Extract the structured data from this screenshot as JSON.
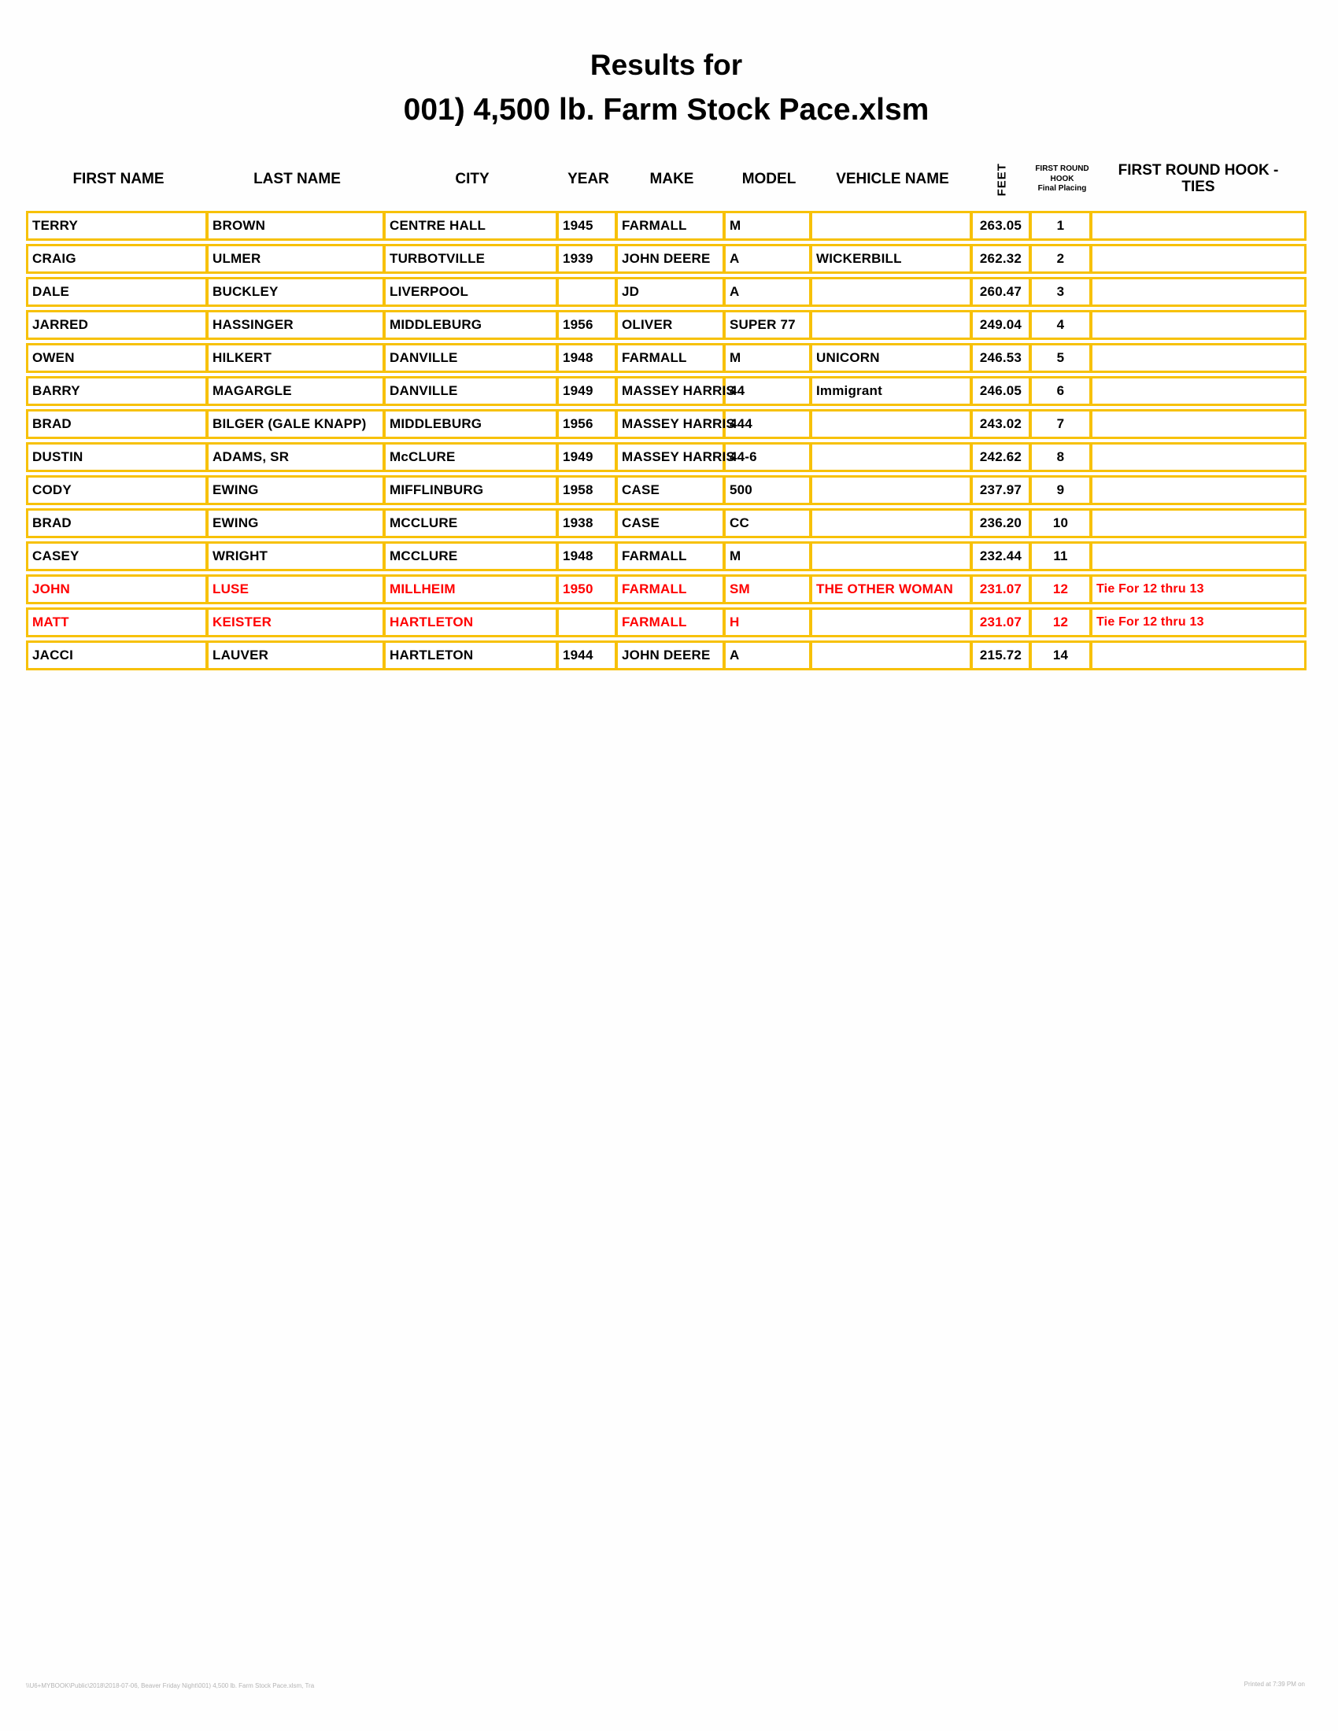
{
  "title": {
    "line1": "Results for",
    "line2": "001) 4,500 lb. Farm Stock Pace.xlsm"
  },
  "colors": {
    "border_gold": "#F7C108",
    "highlight_red": "#FF0000",
    "text": "#000000"
  },
  "table": {
    "columns": [
      {
        "key": "first_name",
        "label": "FIRST NAME"
      },
      {
        "key": "last_name",
        "label": "LAST NAME"
      },
      {
        "key": "city",
        "label": "CITY"
      },
      {
        "key": "year",
        "label": "YEAR"
      },
      {
        "key": "make",
        "label": "MAKE"
      },
      {
        "key": "model",
        "label": "MODEL"
      },
      {
        "key": "vehicle_name",
        "label": "VEHICLE NAME"
      },
      {
        "key": "feet",
        "label": "FEET"
      },
      {
        "key": "place",
        "label": "FIRST ROUND HOOK",
        "sublabel": "Final Placing"
      },
      {
        "key": "ties",
        "label": "FIRST ROUND HOOK - TIES"
      }
    ],
    "row_keys": [
      "first_name",
      "last_name",
      "city",
      "year",
      "make",
      "model",
      "vehicle_name",
      "feet",
      "place",
      "ties"
    ],
    "center_keys": [
      "feet",
      "place"
    ],
    "rows": [
      {
        "first_name": "TERRY",
        "last_name": "BROWN",
        "city": "CENTRE HALL",
        "year": "1945",
        "make": "FARMALL",
        "model": "M",
        "vehicle_name": "",
        "feet": "263.05",
        "place": "1",
        "ties": "",
        "highlight": false
      },
      {
        "first_name": "CRAIG",
        "last_name": "ULMER",
        "city": "TURBOTVILLE",
        "year": "1939",
        "make": "JOHN DEERE",
        "model": "A",
        "vehicle_name": "WICKERBILL",
        "feet": "262.32",
        "place": "2",
        "ties": "",
        "highlight": false
      },
      {
        "first_name": "DALE",
        "last_name": "BUCKLEY",
        "city": "LIVERPOOL",
        "year": "",
        "make": "JD",
        "model": "A",
        "vehicle_name": "",
        "feet": "260.47",
        "place": "3",
        "ties": "",
        "highlight": false
      },
      {
        "first_name": "JARRED",
        "last_name": "HASSINGER",
        "city": "MIDDLEBURG",
        "year": "1956",
        "make": "OLIVER",
        "model": "SUPER 77",
        "vehicle_name": "",
        "feet": "249.04",
        "place": "4",
        "ties": "",
        "highlight": false
      },
      {
        "first_name": "OWEN",
        "last_name": "HILKERT",
        "city": "DANVILLE",
        "year": "1948",
        "make": "FARMALL",
        "model": "M",
        "vehicle_name": "UNICORN",
        "feet": "246.53",
        "place": "5",
        "ties": "",
        "highlight": false
      },
      {
        "first_name": "BARRY",
        "last_name": "MAGARGLE",
        "city": "DANVILLE",
        "year": "1949",
        "make": "MASSEY HARRIS",
        "model": "44",
        "vehicle_name": "Immigrant",
        "feet": "246.05",
        "place": "6",
        "ties": "",
        "highlight": false
      },
      {
        "first_name": "BRAD",
        "last_name": "BILGER (GALE KNAPP)",
        "city": "MIDDLEBURG",
        "year": "1956",
        "make": "MASSEY HARRIS",
        "model": "444",
        "vehicle_name": "",
        "feet": "243.02",
        "place": "7",
        "ties": "",
        "highlight": false
      },
      {
        "first_name": "DUSTIN",
        "last_name": "ADAMS, SR",
        "city": "McCLURE",
        "year": "1949",
        "make": "MASSEY HARRIS",
        "model": "44-6",
        "vehicle_name": "",
        "feet": "242.62",
        "place": "8",
        "ties": "",
        "highlight": false
      },
      {
        "first_name": "CODY",
        "last_name": "EWING",
        "city": "MIFFLINBURG",
        "year": "1958",
        "make": "CASE",
        "model": "500",
        "vehicle_name": "",
        "feet": "237.97",
        "place": "9",
        "ties": "",
        "highlight": false
      },
      {
        "first_name": "BRAD",
        "last_name": "EWING",
        "city": "MCCLURE",
        "year": "1938",
        "make": "CASE",
        "model": "CC",
        "vehicle_name": "",
        "feet": "236.20",
        "place": "10",
        "ties": "",
        "highlight": false
      },
      {
        "first_name": "CASEY",
        "last_name": "WRIGHT",
        "city": "MCCLURE",
        "year": "1948",
        "make": "FARMALL",
        "model": "M",
        "vehicle_name": "",
        "feet": "232.44",
        "place": "11",
        "ties": "",
        "highlight": false
      },
      {
        "first_name": "JOHN",
        "last_name": "LUSE",
        "city": "MILLHEIM",
        "year": "1950",
        "make": "FARMALL",
        "model": "SM",
        "vehicle_name": "THE OTHER WOMAN",
        "feet": "231.07",
        "place": "12",
        "ties": "Tie For 12 thru 13",
        "highlight": true
      },
      {
        "first_name": "MATT",
        "last_name": "KEISTER",
        "city": "HARTLETON",
        "year": "",
        "make": "FARMALL",
        "model": "H",
        "vehicle_name": "",
        "feet": "231.07",
        "place": "12",
        "ties": "Tie For 12 thru 13",
        "highlight": true
      },
      {
        "first_name": "JACCI",
        "last_name": "LAUVER",
        "city": "HARTLETON",
        "year": "1944",
        "make": "JOHN DEERE",
        "model": "A",
        "vehicle_name": "",
        "feet": "215.72",
        "place": "14",
        "ties": "",
        "highlight": false
      }
    ]
  },
  "footer": {
    "left": "\\\\U6+MYBOOK\\Public\\2018\\2018-07-06, Beaver Friday Night\\001) 4,500 lb. Farm Stock Pace.xlsm, Tra",
    "right": "Printed at 7:39 PM on"
  }
}
